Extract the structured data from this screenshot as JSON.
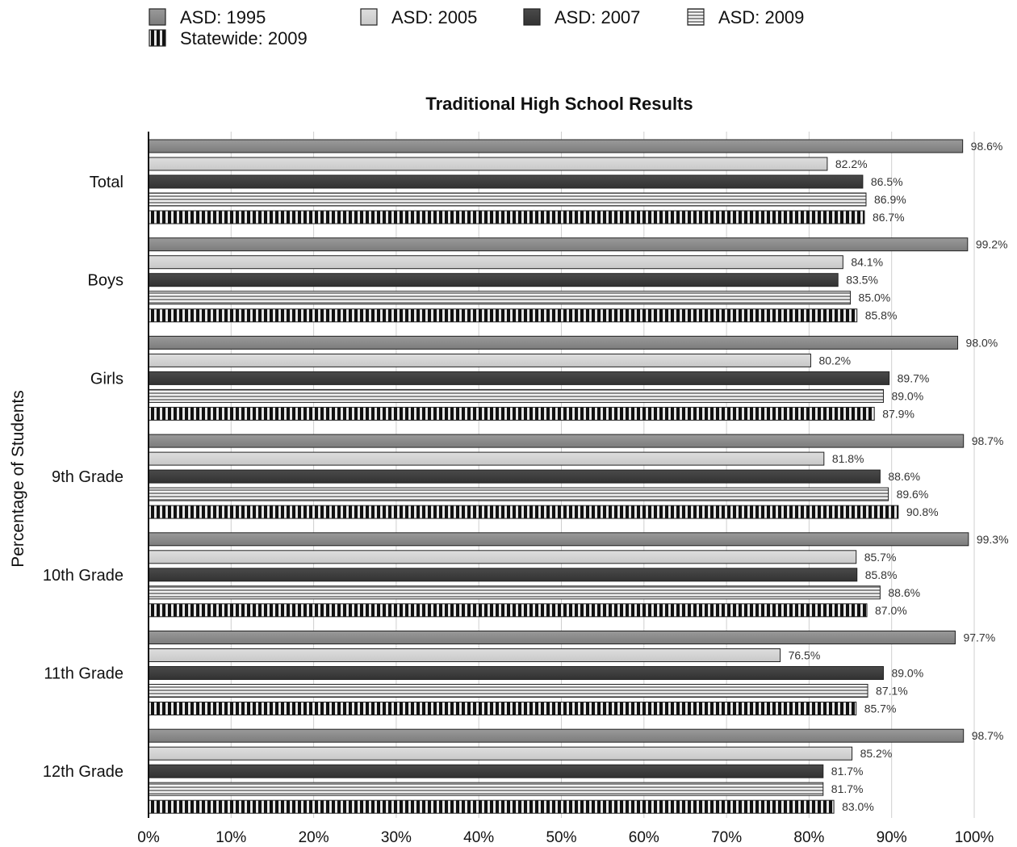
{
  "chart_data": {
    "type": "bar",
    "orientation": "horizontal",
    "title": "Traditional High School Results",
    "xlabel": "",
    "ylabel": "Percentage of Students",
    "xlim": [
      0,
      100
    ],
    "x_ticks": [
      "0%",
      "10%",
      "20%",
      "30%",
      "40%",
      "50%",
      "60%",
      "70%",
      "80%",
      "90%",
      "100%"
    ],
    "grid": "vertical",
    "legend_position": "top-left",
    "categories": [
      "Total",
      "Boys",
      "Girls",
      "9th Grade",
      "10th Grade",
      "11th Grade",
      "12th Grade"
    ],
    "series": [
      {
        "name": "ASD: 1995",
        "pattern": "solid",
        "color": "#8a8a8a",
        "values": [
          98.6,
          99.2,
          98.0,
          98.7,
          99.3,
          97.7,
          98.7
        ],
        "labels": [
          "98.6%",
          "99.2%",
          "98.0%",
          "98.7%",
          "99.3%",
          "97.7%",
          "98.7%"
        ]
      },
      {
        "name": "ASD: 2005",
        "pattern": "solid",
        "color": "#d4d4d4",
        "values": [
          82.2,
          84.1,
          80.2,
          81.8,
          85.7,
          76.5,
          85.2
        ],
        "labels": [
          "82.2%",
          "84.1%",
          "80.2%",
          "81.8%",
          "85.7%",
          "76.5%",
          "85.2%"
        ]
      },
      {
        "name": "ASD: 2007",
        "pattern": "solid",
        "color": "#3f3f3f",
        "values": [
          86.5,
          83.5,
          89.7,
          88.6,
          85.8,
          89.0,
          81.7
        ],
        "labels": [
          "86.5%",
          "83.5%",
          "89.7%",
          "88.6%",
          "85.8%",
          "89.0%",
          "81.7%"
        ]
      },
      {
        "name": "ASD: 2009",
        "pattern": "horizontal-stripes",
        "color": "#9a9a9a",
        "values": [
          86.9,
          85.0,
          89.0,
          89.6,
          88.6,
          87.1,
          81.7
        ],
        "labels": [
          "86.9%",
          "85.0%",
          "89.0%",
          "89.6%",
          "88.6%",
          "87.1%",
          "81.7%"
        ]
      },
      {
        "name": "Statewide: 2009",
        "pattern": "vertical-stripes",
        "color": "#111111",
        "values": [
          86.7,
          85.8,
          87.9,
          90.8,
          87.0,
          85.7,
          83.0
        ],
        "labels": [
          "86.7%",
          "85.8%",
          "87.9%",
          "90.8%",
          "87.0%",
          "85.7%",
          "83.0%"
        ]
      }
    ]
  }
}
